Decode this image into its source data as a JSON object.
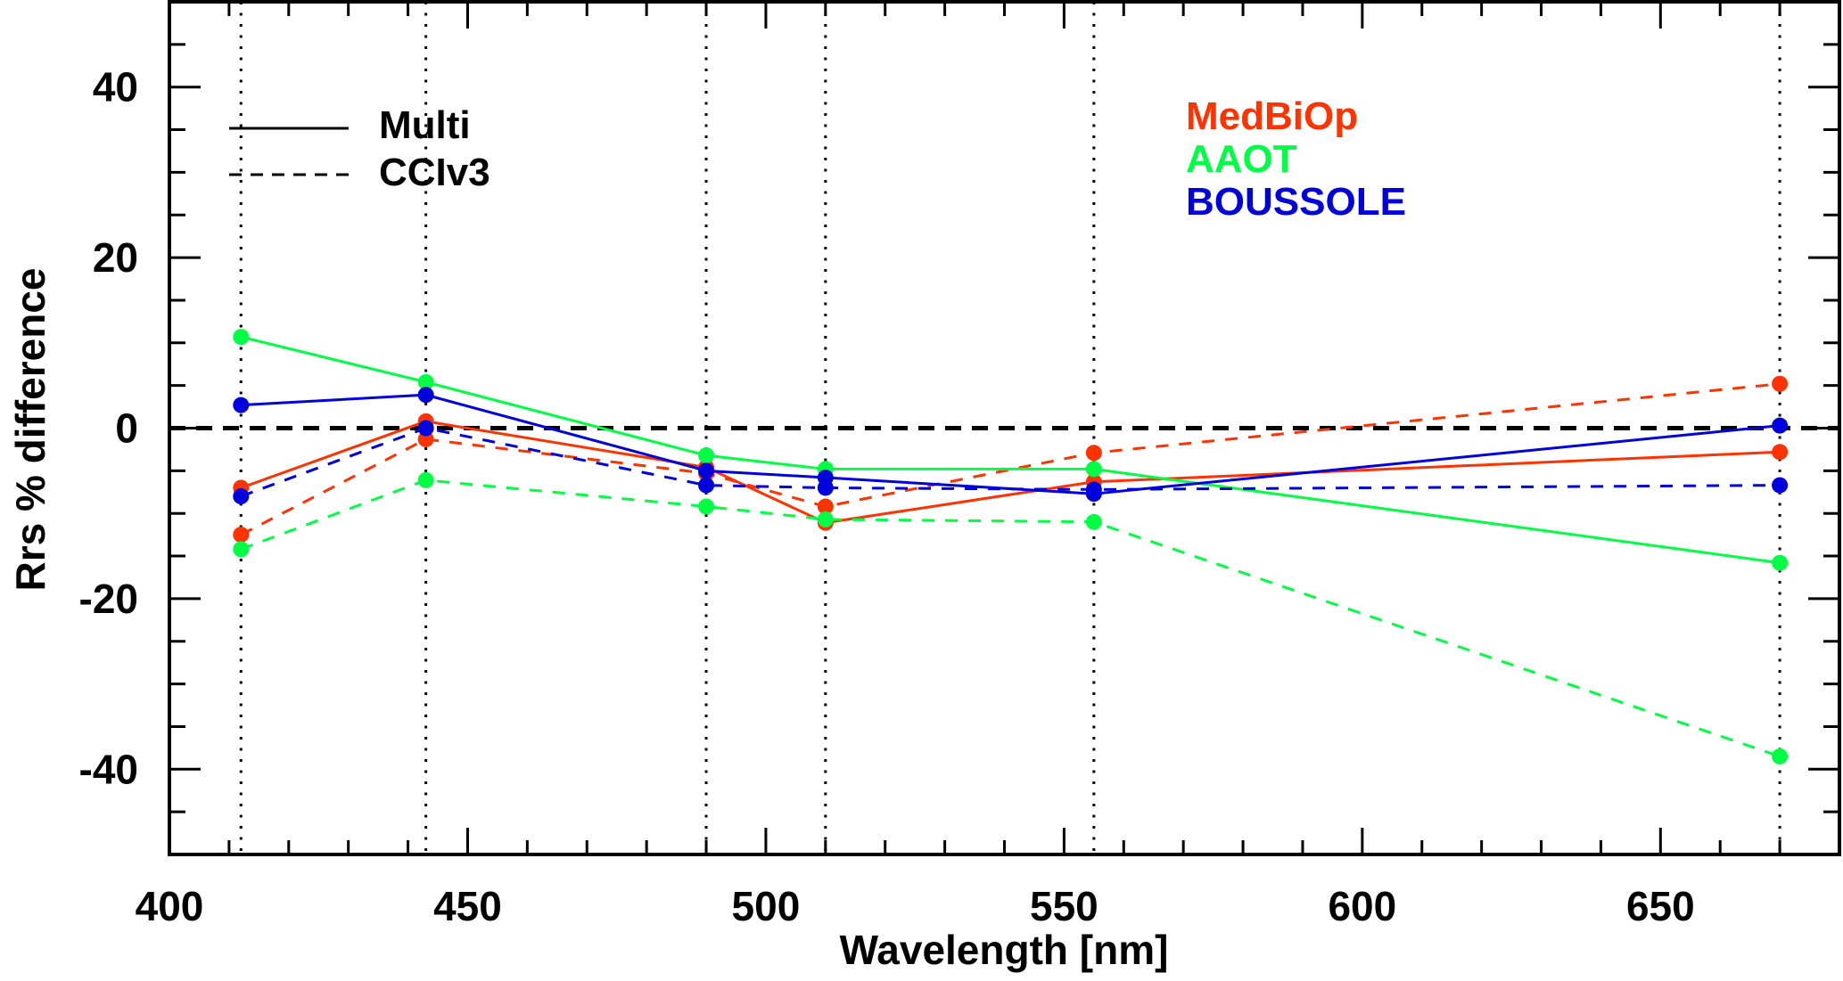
{
  "chart_data": {
    "type": "line",
    "title": "",
    "xlabel": "Wavelength [nm]",
    "ylabel": "Rrs % difference",
    "xlim": [
      400,
      680
    ],
    "ylim": [
      -50,
      50
    ],
    "x_ticks": [
      400,
      450,
      500,
      550,
      600,
      650
    ],
    "x_tick_labels": [
      "400",
      "450",
      "500",
      "550",
      "600",
      "650"
    ],
    "x_minor_step": 10,
    "y_ticks": [
      -40,
      -20,
      0,
      20,
      40
    ],
    "y_tick_labels": [
      "-40",
      "-20",
      "0",
      "20",
      "40"
    ],
    "y_minor_step": 5,
    "grid": false,
    "reference_lines": {
      "vertical_dotted_at": [
        412,
        443,
        490,
        510,
        555,
        670
      ],
      "horizontal_dashed_at": 0
    },
    "x": [
      412,
      443,
      490,
      510,
      555,
      670
    ],
    "style_legend": {
      "position": "top-left",
      "entries": [
        {
          "label": "Multi",
          "linestyle": "solid"
        },
        {
          "label": "CCIv3",
          "linestyle": "dashed"
        }
      ]
    },
    "site_legend": {
      "position": "top-center-right",
      "entries": [
        {
          "label": "MedBiOp",
          "color": "#ff3300"
        },
        {
          "label": "AAOT",
          "color": "#00ff44"
        },
        {
          "label": "BOUSSOLE",
          "color": "#0000dd"
        }
      ]
    },
    "series": [
      {
        "name": "MedBiOp Multi",
        "site": "MedBiOp",
        "method": "Multi",
        "color": "#ff3300",
        "linestyle": "solid",
        "values": [
          -7.0,
          0.8,
          -4.6,
          -11.1,
          -6.3,
          -2.8
        ]
      },
      {
        "name": "MedBiOp CCIv3",
        "site": "MedBiOp",
        "method": "CCIv3",
        "color": "#ff3300",
        "linestyle": "dashed",
        "values": [
          -12.5,
          -1.3,
          -5.3,
          -9.2,
          -2.9,
          5.2
        ]
      },
      {
        "name": "AAOT Multi",
        "site": "AAOT",
        "method": "Multi",
        "color": "#00ff44",
        "linestyle": "solid",
        "values": [
          10.7,
          5.4,
          -3.2,
          -4.8,
          -4.8,
          -15.8
        ]
      },
      {
        "name": "AAOT CCIv3",
        "site": "AAOT",
        "method": "CCIv3",
        "color": "#00ff44",
        "linestyle": "dashed",
        "values": [
          -14.2,
          -6.1,
          -9.2,
          -10.7,
          -11.0,
          -38.5
        ]
      },
      {
        "name": "BOUSSOLE Multi",
        "site": "BOUSSOLE",
        "method": "Multi",
        "color": "#0000dd",
        "linestyle": "solid",
        "values": [
          2.7,
          3.9,
          -5.0,
          -5.8,
          -7.7,
          0.3
        ]
      },
      {
        "name": "BOUSSOLE CCIv3",
        "site": "BOUSSOLE",
        "method": "CCIv3",
        "color": "#0000dd",
        "linestyle": "dashed",
        "values": [
          -8.0,
          0.0,
          -6.7,
          -7.0,
          -7.2,
          -6.7
        ]
      }
    ]
  }
}
